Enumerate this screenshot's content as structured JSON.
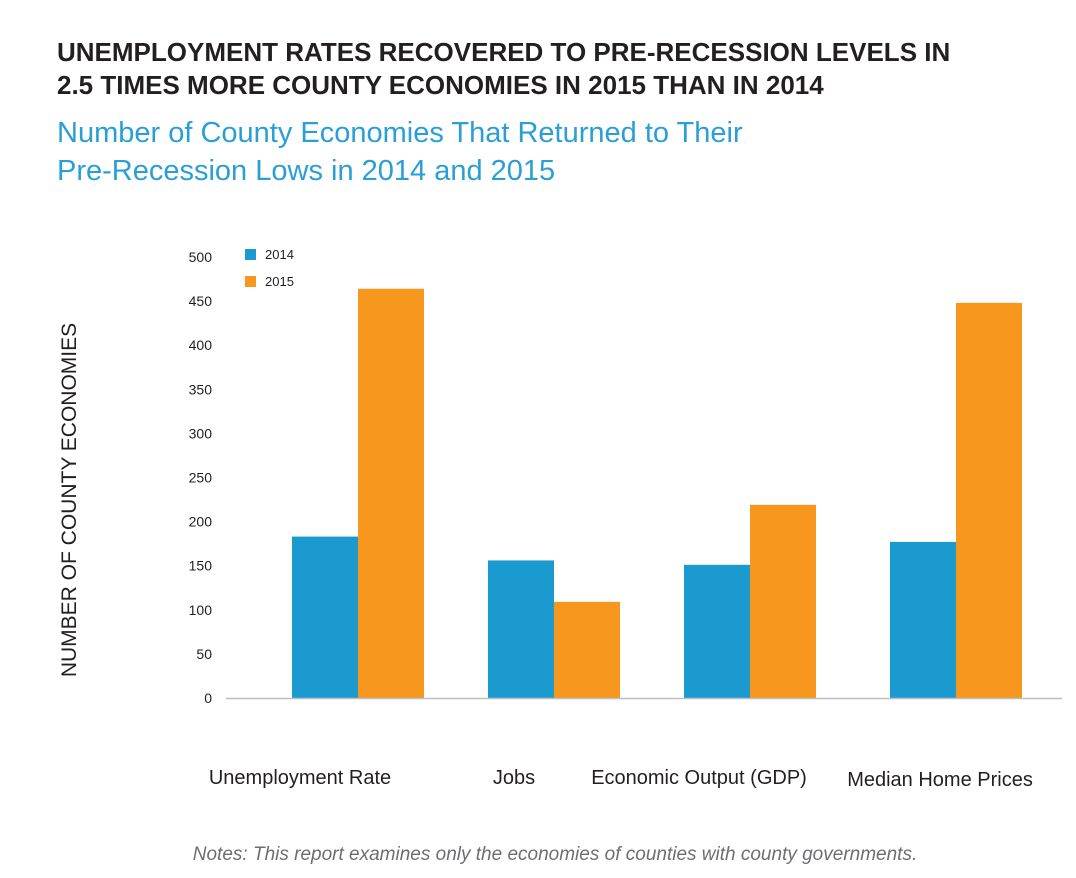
{
  "headline": {
    "line1": "UNEMPLOYMENT RATES RECOVERED TO PRE-RECESSION LEVELS IN",
    "line2": "2.5 TIMES MORE COUNTY ECONOMIES IN 2015 THAN IN 2014"
  },
  "subtitle": {
    "line1": "Number of County Economies That Returned to Their",
    "line2": "Pre-Recession Lows in 2014 and 2015"
  },
  "note": "Notes: This report examines only the economies of counties with county governments.",
  "colors": {
    "2014": "#1b9ad0",
    "2015": "#f7971e",
    "axis": "#bcbec0",
    "text": "#231f20"
  },
  "chart_data": {
    "type": "bar",
    "title": "Number of County Economies That Returned to Their Pre-Recession Lows in 2014 and 2015",
    "categories": [
      "Unemployment Rate",
      "Jobs",
      "Economic Output (GDP)",
      "Median Home Prices"
    ],
    "series": [
      {
        "name": "2014",
        "values": [
          183,
          156,
          151,
          177
        ]
      },
      {
        "name": "2015",
        "values": [
          464,
          109,
          219,
          448
        ]
      }
    ],
    "xlabel": "",
    "ylabel": "NUMBER OF COUNTY ECONOMIES",
    "ylim": [
      0,
      500
    ],
    "yticks": [
      "0",
      "50",
      "100",
      "150",
      "200",
      "250",
      "300",
      "350",
      "400",
      "450",
      "500"
    ],
    "grid": false,
    "legend": "top-left"
  }
}
